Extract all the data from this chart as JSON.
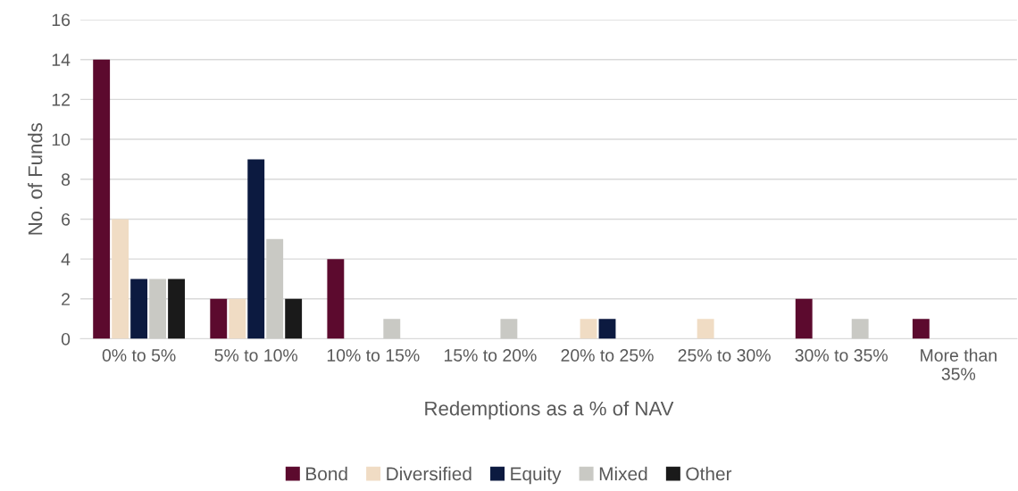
{
  "chart_data": {
    "type": "bar",
    "xlabel": "Redemptions as a % of NAV",
    "ylabel": "No. of Funds",
    "categories": [
      "0% to 5%",
      "5% to 10%",
      "10% to 15%",
      "15% to 20%",
      "20% to 25%",
      "25% to 30%",
      "30% to 35%",
      "More than\n35%"
    ],
    "series": [
      {
        "name": "Bond",
        "color": "#5c0a2e",
        "values": [
          14,
          2,
          4,
          0,
          0,
          0,
          2,
          1
        ]
      },
      {
        "name": "Diversified",
        "color": "#f0dcc4",
        "values": [
          6,
          2,
          0,
          0,
          1,
          1,
          0,
          0
        ]
      },
      {
        "name": "Equity",
        "color": "#0c1a40",
        "values": [
          3,
          9,
          0,
          0,
          1,
          0,
          0,
          0
        ]
      },
      {
        "name": "Mixed",
        "color": "#c9c9c4",
        "values": [
          3,
          5,
          1,
          1,
          0,
          0,
          1,
          0
        ]
      },
      {
        "name": "Other",
        "color": "#1a1a1a",
        "values": [
          3,
          2,
          0,
          0,
          0,
          0,
          0,
          0
        ]
      }
    ],
    "ylim": [
      0,
      16
    ],
    "yticks": [
      0,
      2,
      4,
      6,
      8,
      10,
      12,
      14,
      16
    ],
    "grid": "y",
    "legend": "bottom"
  }
}
